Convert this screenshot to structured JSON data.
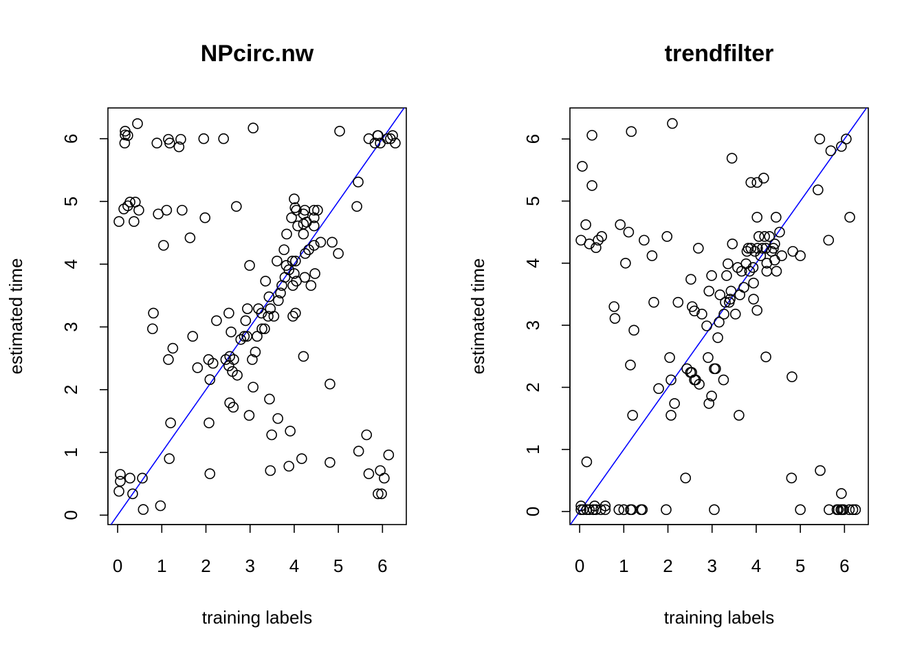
{
  "chart_data": [
    {
      "type": "scatter",
      "title": "NPcirc.nw",
      "xlabel": "training labels",
      "ylabel": "estimated time",
      "color": "#000000",
      "reference_line": {
        "intercept": 0,
        "slope": 1,
        "color": "#0000ff"
      },
      "xlim": [
        -0.22,
        6.54
      ],
      "ylim": [
        -0.15,
        6.49
      ],
      "xticks": [
        0,
        1,
        2,
        3,
        4,
        5,
        6
      ],
      "yticks": [
        0,
        1,
        2,
        3,
        4,
        5,
        6
      ],
      "x": [
        0.03,
        0.06,
        0.06,
        0.28,
        0.34,
        0.56,
        0.58,
        0.97,
        1.17,
        1.2,
        2.09,
        2.07,
        2.98,
        2.54,
        2.62,
        3.44,
        3.63,
        3.49,
        3.91,
        3.46,
        3.88,
        4.17,
        4.81,
        4.81,
        5.46,
        5.64,
        5.69,
        6.14,
        5.95,
        6.04,
        5.9,
        5.98,
        0.03,
        0.14,
        0.23,
        0.28,
        0.4,
        0.48,
        0.37,
        0.92,
        1.11,
        1.46,
        1.04,
        1.64,
        1.98,
        2.69,
        0.16,
        0.17,
        0.23,
        0.17,
        0.45,
        0.89,
        1.15,
        1.18,
        1.39,
        1.43,
        1.95,
        2.4,
        3.07,
        5.03,
        5.69,
        5.83,
        5.89,
        5.9,
        5.95,
        6.11,
        6.18,
        6.23,
        6.29,
        5.45,
        5.42,
        0.81,
        0.79,
        1.25,
        1.15,
        1.7,
        1.81,
        2.06,
        2.16,
        2.09,
        2.24,
        2.45,
        2.52,
        2.54,
        2.6,
        2.63,
        2.71,
        2.57,
        2.52,
        2.79,
        2.87,
        2.93,
        2.9,
        2.94,
        2.99,
        3.07,
        3.05,
        3.12,
        3.16,
        3.19,
        3.27,
        3.33,
        3.35,
        3.43,
        3.46,
        3.54,
        3.41,
        3.26,
        3.64,
        3.69,
        3.72,
        3.61,
        3.79,
        3.82,
        3.88,
        3.96,
        4.03,
        3.97,
        3.97,
        4.03,
        4.0,
        4.05,
        4.21,
        4.24,
        4.38,
        4.47,
        3.77,
        3.83,
        3.94,
        4.0,
        4.02,
        4.05,
        4.08,
        4.21,
        4.21,
        4.21,
        4.24,
        4.28,
        4.25,
        4.33,
        4.45,
        4.45,
        4.45,
        4.53,
        4.45,
        4.6,
        4.86,
        5.0
      ],
      "y": [
        0.38,
        0.54,
        0.65,
        0.59,
        0.34,
        0.59,
        0.09,
        0.15,
        0.9,
        1.47,
        0.66,
        1.47,
        1.59,
        1.79,
        1.72,
        1.85,
        1.54,
        1.28,
        1.34,
        0.71,
        0.78,
        0.9,
        0.84,
        2.09,
        1.02,
        1.28,
        0.66,
        0.96,
        0.71,
        0.59,
        0.34,
        0.34,
        4.68,
        4.88,
        4.93,
        4.99,
        4.99,
        4.86,
        4.68,
        4.8,
        4.86,
        4.86,
        4.3,
        4.42,
        4.74,
        4.92,
        5.93,
        6.12,
        6.05,
        6.06,
        6.24,
        5.93,
        5.99,
        5.93,
        5.87,
        5.99,
        6.0,
        6.0,
        6.17,
        6.12,
        6.0,
        5.93,
        6.05,
        6.05,
        5.93,
        6.0,
        6.0,
        6.05,
        5.93,
        5.31,
        4.92,
        3.22,
        2.97,
        2.66,
        2.48,
        2.85,
        2.35,
        2.48,
        2.42,
        2.16,
        3.1,
        2.48,
        2.38,
        2.53,
        2.29,
        2.48,
        2.23,
        2.92,
        3.22,
        2.8,
        2.85,
        2.85,
        3.1,
        3.29,
        3.98,
        2.04,
        2.48,
        2.6,
        2.85,
        3.29,
        2.97,
        2.97,
        3.73,
        3.48,
        3.29,
        3.17,
        3.17,
        3.22,
        3.42,
        3.54,
        3.66,
        4.05,
        3.79,
        3.98,
        3.91,
        4.05,
        4.05,
        3.66,
        3.17,
        3.22,
        3.85,
        3.73,
        2.53,
        3.79,
        3.66,
        3.85,
        4.23,
        4.48,
        4.74,
        5.04,
        4.9,
        4.86,
        4.61,
        4.8,
        4.64,
        4.48,
        4.86,
        4.67,
        4.17,
        4.23,
        4.61,
        4.74,
        4.86,
        4.86,
        4.3,
        4.35,
        4.35,
        4.17
      ]
    },
    {
      "type": "scatter",
      "title": "trendfilter",
      "xlabel": "training labels",
      "ylabel": "estimated time",
      "color": "#000000",
      "reference_line": {
        "intercept": 0,
        "slope": 1,
        "color": "#0000ff"
      },
      "xlim": [
        -0.22,
        6.54
      ],
      "ylim": [
        -0.21,
        6.5
      ],
      "xticks": [
        0,
        1,
        2,
        3,
        4,
        5,
        6
      ],
      "yticks": [
        0,
        1,
        2,
        3,
        4,
        5,
        6
      ],
      "x": [
        0.06,
        0.28,
        0.28,
        0.03,
        0.14,
        0.22,
        0.37,
        0.42,
        0.5,
        1.17,
        2.1,
        0.92,
        1.11,
        1.04,
        1.46,
        1.64,
        1.98,
        2.69,
        3.45,
        3.88,
        4.02,
        4.17,
        5.44,
        5.69,
        5.93,
        6.04,
        5.4,
        6.12,
        5.64,
        4.83,
        5.0,
        4.02,
        4.45,
        4.53,
        0.78,
        0.8,
        1.23,
        1.15,
        1.68,
        2.23,
        2.52,
        2.55,
        2.6,
        2.77,
        2.88,
        2.93,
        2.99,
        2.04,
        2.07,
        2.43,
        2.54,
        2.51,
        2.6,
        2.63,
        2.71,
        2.91,
        3.05,
        3.08,
        3.13,
        3.16,
        3.18,
        3.27,
        3.3,
        3.33,
        3.36,
        3.39,
        3.41,
        3.43,
        3.46,
        3.53,
        3.58,
        3.63,
        3.67,
        3.72,
        3.77,
        3.79,
        3.82,
        3.85,
        3.88,
        3.93,
        3.94,
        3.94,
        3.97,
        4.02,
        4.03,
        4.06,
        4.1,
        4.14,
        4.19,
        4.22,
        4.22,
        4.24,
        4.24,
        4.3,
        4.35,
        4.39,
        4.42,
        4.42,
        4.46,
        4.58,
        4.81,
        2.93,
        2.99,
        3.26,
        2.07,
        2.15,
        1.79,
        1.2,
        3.61,
        2.4,
        0.16,
        4.8,
        5.45,
        5.93,
        0.03,
        0.08,
        0.16,
        0.22,
        0.31,
        0.37,
        0.48,
        0.58,
        0.89,
        1.0,
        1.15,
        1.18,
        1.39,
        1.42,
        1.96,
        3.05,
        5.0,
        5.65,
        5.83,
        5.86,
        5.92,
        5.95,
        5.98,
        6.11,
        6.19,
        6.25,
        0.03,
        0.34,
        0.58
      ],
      "y": [
        5.56,
        6.06,
        5.25,
        4.37,
        4.62,
        4.31,
        4.25,
        4.37,
        4.43,
        6.12,
        6.25,
        4.62,
        4.5,
        4.0,
        4.37,
        4.12,
        4.43,
        4.24,
        5.69,
        5.3,
        5.3,
        5.37,
        6.0,
        5.81,
        5.88,
        6.0,
        5.18,
        4.74,
        4.37,
        4.19,
        4.12,
        4.74,
        4.74,
        4.5,
        3.3,
        3.11,
        2.92,
        2.36,
        3.37,
        3.37,
        3.74,
        3.3,
        3.23,
        3.18,
        2.99,
        3.55,
        3.8,
        2.48,
        2.12,
        2.3,
        2.24,
        2.24,
        2.12,
        2.12,
        2.05,
        2.48,
        2.3,
        2.3,
        2.8,
        3.05,
        3.49,
        3.18,
        3.37,
        3.8,
        3.99,
        3.37,
        3.42,
        3.55,
        4.31,
        3.18,
        3.93,
        3.49,
        3.87,
        3.61,
        3.99,
        4.19,
        4.24,
        3.87,
        4.24,
        3.93,
        3.68,
        3.42,
        4.19,
        3.24,
        4.24,
        4.43,
        4.12,
        4.24,
        4.43,
        4.24,
        2.49,
        4.0,
        3.87,
        4.43,
        4.19,
        4.24,
        4.31,
        4.05,
        3.87,
        4.12,
        2.17,
        1.74,
        1.86,
        2.12,
        1.55,
        1.74,
        1.98,
        1.55,
        1.55,
        0.54,
        0.8,
        0.54,
        0.66,
        0.29,
        0.03,
        0.03,
        0.03,
        0.03,
        0.03,
        0.03,
        0.03,
        0.03,
        0.03,
        0.03,
        0.03,
        0.03,
        0.03,
        0.03,
        0.03,
        0.03,
        0.03,
        0.03,
        0.03,
        0.03,
        0.03,
        0.03,
        0.03,
        0.03,
        0.03,
        0.03,
        0.09,
        0.09,
        0.09
      ]
    }
  ]
}
